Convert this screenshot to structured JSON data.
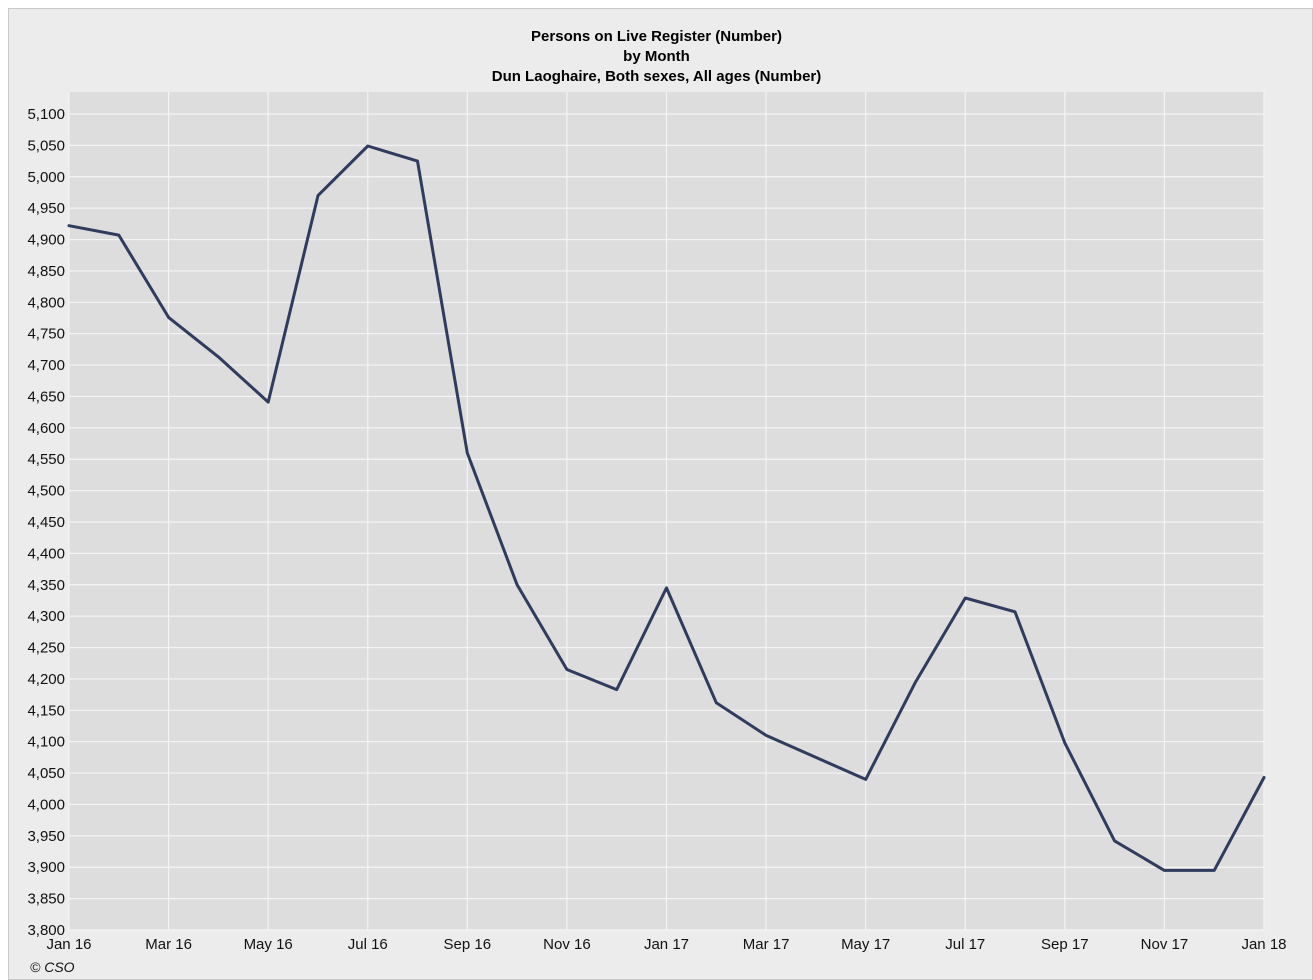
{
  "chart_data": {
    "type": "line",
    "title": "Persons on Live Register (Number)",
    "subtitle_1": "by Month",
    "subtitle_2": "Dun Laoghaire, Both sexes, All ages (Number)",
    "xlabel": "",
    "ylabel": "",
    "x_tick_labels": [
      "Jan 16",
      "Mar 16",
      "May 16",
      "Jul 16",
      "Sep 16",
      "Nov 16",
      "Jan 17",
      "Mar 17",
      "May 17",
      "Jul 17",
      "Sep 17",
      "Nov 17",
      "Jan 18"
    ],
    "y_tick_labels": [
      "3,800",
      "3,850",
      "3,900",
      "3,950",
      "4,000",
      "4,050",
      "4,100",
      "4,150",
      "4,200",
      "4,250",
      "4,300",
      "4,350",
      "4,400",
      "4,450",
      "4,500",
      "4,550",
      "4,600",
      "4,650",
      "4,700",
      "4,750",
      "4,800",
      "4,850",
      "4,900",
      "4,950",
      "5,000",
      "5,050",
      "5,100"
    ],
    "ylim": [
      3800,
      5100
    ],
    "grid": true,
    "series": [
      {
        "x": [
          "Jan 16",
          "Feb 16",
          "Mar 16",
          "Apr 16",
          "May 16",
          "Jun 16",
          "Jul 16",
          "Aug 16",
          "Sep 16",
          "Oct 16",
          "Nov 16",
          "Dec 16",
          "Jan 17",
          "Feb 17",
          "Mar 17",
          "Apr 17",
          "May 17",
          "Jun 17",
          "Jul 17",
          "Aug 17",
          "Sep 17",
          "Oct 17",
          "Nov 17",
          "Dec 17",
          "Jan 18"
        ],
        "values": [
          4922,
          4907,
          4776,
          4713,
          4641,
          4970,
          5049,
          5025,
          4560,
          4350,
          4215,
          4183,
          4345,
          4162,
          4110,
          4075,
          4040,
          4195,
          4329,
          4307,
          4098,
          3942,
          3895,
          3895,
          4043
        ]
      }
    ],
    "colors": {
      "line": "#2f3c5e",
      "plot_bg": "#dddddd",
      "grid": "#f4f4f4",
      "frame_bg": "#ececec"
    }
  },
  "footer": {
    "copyright": "© CSO"
  }
}
